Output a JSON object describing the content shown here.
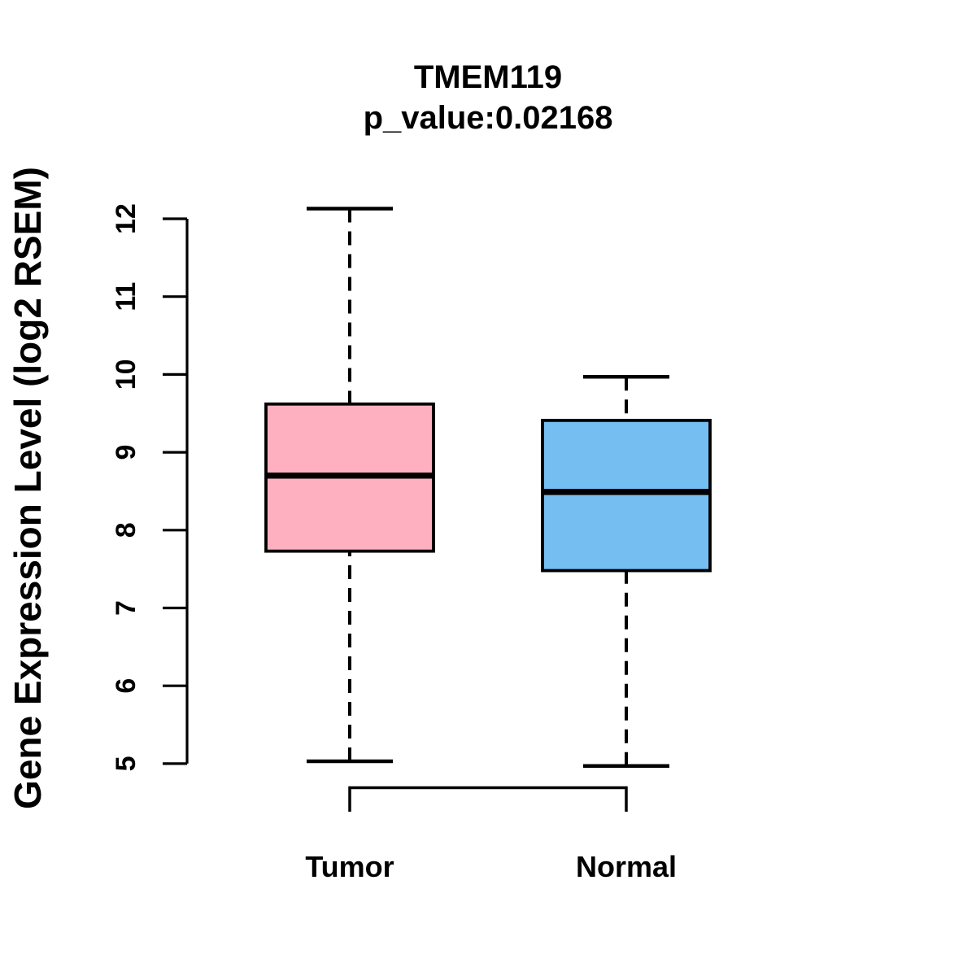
{
  "figure": {
    "background": "#FFFFFF",
    "text_color": "#000000",
    "edge_color": "#000000"
  },
  "chart_data": {
    "type": "boxplot",
    "title": "TMEM119",
    "subtitle": "p_value:0.02168",
    "ylabel": "Gene Expression Level (log2 RSEM)",
    "xlabel": "",
    "ylim": [
      5,
      12
    ],
    "yticks": [
      5,
      6,
      7,
      8,
      9,
      10,
      11,
      12
    ],
    "grid": false,
    "legend": "none",
    "categories": [
      "Tumor",
      "Normal"
    ],
    "series": [
      {
        "name": "Tumor",
        "color": "#FFB0C0",
        "whisker_low": 5.03,
        "q1": 7.73,
        "median": 8.7,
        "q3": 9.62,
        "whisker_high": 12.13
      },
      {
        "name": "Normal",
        "color": "#74BEF2",
        "whisker_low": 4.97,
        "q1": 7.48,
        "median": 8.49,
        "q3": 9.41,
        "whisker_high": 9.97
      }
    ]
  }
}
